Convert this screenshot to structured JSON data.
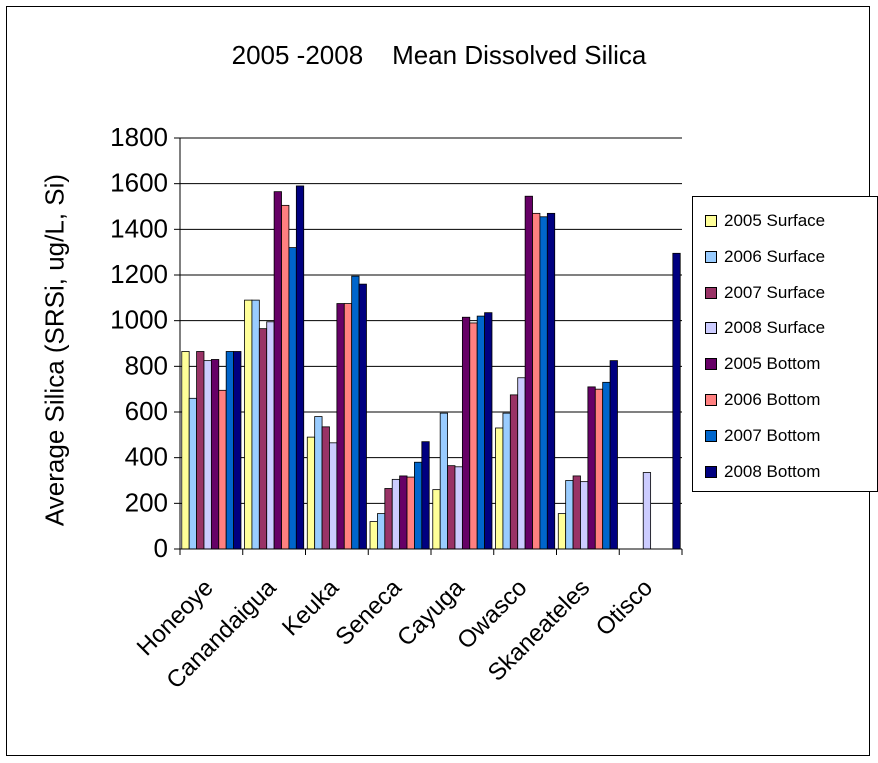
{
  "chart_data": {
    "type": "bar",
    "title": "2005 -2008    Mean Dissolved Silica",
    "xlabel": "",
    "ylabel": "Average Silica (SRSi, ug/L, Si)",
    "ylim": [
      0,
      1800
    ],
    "yticks": [
      0,
      200,
      400,
      600,
      800,
      1000,
      1200,
      1400,
      1600,
      1800
    ],
    "grid": true,
    "legend_position": "right",
    "categories": [
      "Honeoye",
      "Canandaigua",
      "Keuka",
      "Seneca",
      "Cayuga",
      "Owasco",
      "Skaneateles",
      "Otisco"
    ],
    "series": [
      {
        "name": "2005 Surface",
        "color": "#ffff99",
        "values": [
          865,
          1090,
          490,
          120,
          260,
          530,
          155,
          null
        ]
      },
      {
        "name": "2006 Surface",
        "color": "#99ccff",
        "values": [
          660,
          1090,
          580,
          155,
          595,
          595,
          300,
          null
        ]
      },
      {
        "name": "2007 Surface",
        "color": "#993366",
        "values": [
          865,
          965,
          535,
          265,
          365,
          675,
          320,
          null
        ]
      },
      {
        "name": "2008 Surface",
        "color": "#ccccff",
        "values": [
          825,
          995,
          465,
          305,
          360,
          750,
          295,
          335
        ]
      },
      {
        "name": "2005 Bottom",
        "color": "#660066",
        "values": [
          830,
          1565,
          1075,
          320,
          1015,
          1545,
          710,
          null
        ]
      },
      {
        "name": "2006 Bottom",
        "color": "#ff8080",
        "values": [
          695,
          1505,
          1075,
          315,
          990,
          1470,
          700,
          null
        ]
      },
      {
        "name": "2007 Bottom",
        "color": "#0066cc",
        "values": [
          865,
          1320,
          1195,
          380,
          1020,
          1455,
          730,
          null
        ]
      },
      {
        "name": "2008 Bottom",
        "color": "#000080",
        "values": [
          865,
          1590,
          1160,
          470,
          1035,
          1470,
          825,
          1295
        ]
      }
    ]
  }
}
